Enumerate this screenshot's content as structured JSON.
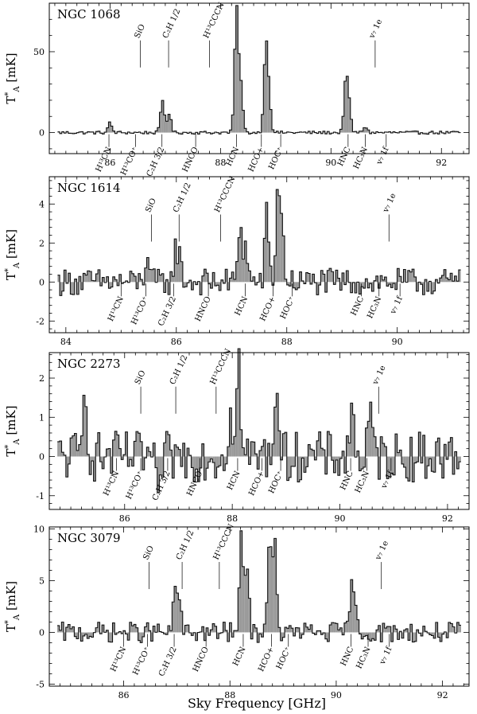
{
  "xlabel": "Sky Frequency [GHz]",
  "ylabel_main": "T",
  "ylabel_sup": "*",
  "ylabel_sub": "A",
  "ylabel_unit": "[mK]",
  "chart_data": [
    {
      "type": "line",
      "title": "NGC 1068",
      "xlim": [
        84.9,
        92.5
      ],
      "ylim": [
        -13,
        80
      ],
      "xticks": [
        86,
        88,
        90,
        92
      ],
      "yticks": [
        0,
        50
      ],
      "baseline_noise": 1.0,
      "peaks": [
        {
          "x": 85.98,
          "y": 6
        },
        {
          "x": 86.93,
          "y": 20
        },
        {
          "x": 87.05,
          "y": 12
        },
        {
          "x": 88.27,
          "y": 76
        },
        {
          "x": 88.35,
          "y": 28
        },
        {
          "x": 88.8,
          "y": 52
        },
        {
          "x": 88.86,
          "y": 20
        },
        {
          "x": 90.25,
          "y": 32
        },
        {
          "x": 90.31,
          "y": 15
        },
        {
          "x": 90.6,
          "y": 4
        }
      ],
      "upper_labels": [
        {
          "text": "SiO",
          "x": 86.55,
          "y": 55
        },
        {
          "text": "C₂H 1/2",
          "x": 87.06,
          "y": 55
        },
        {
          "text": "H¹³CCCN",
          "x": 87.8,
          "y": 55
        },
        {
          "text": "v₇ 1e",
          "x": 90.8,
          "y": 55
        }
      ],
      "lower_labels": [
        {
          "text": "H¹³CN",
          "x": 85.98
        },
        {
          "text": "H¹³CO⁺",
          "x": 86.46
        },
        {
          "text": "C₂H 3/2",
          "x": 86.94
        },
        {
          "text": "HNCO",
          "x": 87.55
        },
        {
          "text": "HCN",
          "x": 88.29
        },
        {
          "text": "HCO+",
          "x": 88.74
        },
        {
          "text": "HOC⁺",
          "x": 89.09
        },
        {
          "text": "HNC",
          "x": 90.31
        },
        {
          "text": "HC₃N",
          "x": 90.62
        },
        {
          "text": "v₇ 1f",
          "x": 91.0
        }
      ]
    },
    {
      "type": "line",
      "title": "NGC 1614",
      "xlim": [
        83.7,
        91.3
      ],
      "ylim": [
        -2.6,
        5.4
      ],
      "xticks": [
        84,
        86,
        88,
        90
      ],
      "yticks": [
        -2,
        0,
        2,
        4
      ],
      "baseline_noise": 0.7,
      "peaks": [
        {
          "x": 85.45,
          "y": 1.5
        },
        {
          "x": 85.97,
          "y": 1.7
        },
        {
          "x": 86.05,
          "y": 1.1
        },
        {
          "x": 87.14,
          "y": 3.1
        },
        {
          "x": 87.24,
          "y": 1.8
        },
        {
          "x": 87.62,
          "y": 3.5
        },
        {
          "x": 87.82,
          "y": 4.9
        },
        {
          "x": 87.9,
          "y": 2.6
        }
      ],
      "upper_labels": [
        {
          "text": "SiO",
          "x": 85.55,
          "y": 3.3
        },
        {
          "text": "C₂H 1/2",
          "x": 86.05,
          "y": 3.3
        },
        {
          "text": "H¹³CCCN",
          "x": 86.8,
          "y": 3.3
        },
        {
          "text": "v₇ 1e",
          "x": 89.85,
          "y": 3.3
        }
      ],
      "lower_labels": [
        {
          "text": "H¹³CN",
          "x": 85.0
        },
        {
          "text": "H¹³CO⁺",
          "x": 85.45
        },
        {
          "text": "C₂H 3/2",
          "x": 85.95
        },
        {
          "text": "HNCO",
          "x": 86.58
        },
        {
          "text": "HCN",
          "x": 87.25
        },
        {
          "text": "HCO+",
          "x": 87.75
        },
        {
          "text": "HOC⁺",
          "x": 88.1
        },
        {
          "text": "HNC",
          "x": 89.35
        },
        {
          "text": "HC₃N",
          "x": 89.67
        },
        {
          "text": "v₇ 1f",
          "x": 90.05
        }
      ]
    },
    {
      "type": "line",
      "title": "NGC 2273",
      "xlim": [
        84.6,
        92.4
      ],
      "ylim": [
        -1.35,
        2.65
      ],
      "xticks": [
        86,
        88,
        90,
        92
      ],
      "yticks": [
        -1,
        0,
        1,
        2
      ],
      "baseline_noise": 0.65,
      "peaks": [
        {
          "x": 85.25,
          "y": 1.95
        },
        {
          "x": 87.95,
          "y": 1.5
        },
        {
          "x": 88.1,
          "y": 2.55
        },
        {
          "x": 88.8,
          "y": 2.25
        },
        {
          "x": 90.2,
          "y": 1.4
        },
        {
          "x": 90.55,
          "y": 1.05
        },
        {
          "x": 86.6,
          "y": -1.5
        }
      ],
      "upper_labels": [
        {
          "text": "SiO",
          "x": 86.3,
          "y": 1.7
        },
        {
          "text": "C₂H 1/2",
          "x": 86.95,
          "y": 1.7
        },
        {
          "text": "H¹³CCCN",
          "x": 87.7,
          "y": 1.7
        },
        {
          "text": "v₇ 1e",
          "x": 90.72,
          "y": 1.7
        }
      ],
      "lower_labels": [
        {
          "text": "H¹³CN",
          "x": 85.85
        },
        {
          "text": "H¹³CO⁺",
          "x": 86.3
        },
        {
          "text": "C₂H 3/2",
          "x": 86.8
        },
        {
          "text": "HNCO",
          "x": 87.4
        },
        {
          "text": "HCN",
          "x": 88.1
        },
        {
          "text": "HCO+",
          "x": 88.55
        },
        {
          "text": "HOC⁺",
          "x": 88.9
        },
        {
          "text": "HNC",
          "x": 90.2
        },
        {
          "text": "HC₃N",
          "x": 90.5
        },
        {
          "text": "v₇ 1f",
          "x": 90.95
        }
      ]
    },
    {
      "type": "line",
      "title": "NGC 3079",
      "xlim": [
        84.6,
        92.5
      ],
      "ylim": [
        -5.2,
        10.2
      ],
      "xticks": [
        86,
        88,
        90,
        92
      ],
      "yticks": [
        -5,
        0,
        5,
        10
      ],
      "baseline_noise": 1.0,
      "peaks": [
        {
          "x": 86.95,
          "y": 3.8
        },
        {
          "x": 87.02,
          "y": 3.2
        },
        {
          "x": 88.2,
          "y": 9.3
        },
        {
          "x": 88.3,
          "y": 6.5
        },
        {
          "x": 88.72,
          "y": 9.3
        },
        {
          "x": 88.82,
          "y": 8.5
        },
        {
          "x": 90.26,
          "y": 4.3
        },
        {
          "x": 90.34,
          "y": 2.2
        }
      ],
      "upper_labels": [
        {
          "text": "SiO",
          "x": 86.48,
          "y": 6.5
        },
        {
          "text": "C₂H 1/2",
          "x": 87.1,
          "y": 6.5
        },
        {
          "text": "H¹³CCCN",
          "x": 87.8,
          "y": 6.5
        },
        {
          "text": "v₇ 1e",
          "x": 90.85,
          "y": 6.5
        }
      ],
      "lower_labels": [
        {
          "text": "H¹³CN",
          "x": 86.0
        },
        {
          "text": "H¹³CO⁺",
          "x": 86.45
        },
        {
          "text": "C₂H 3/2",
          "x": 86.95
        },
        {
          "text": "HNCO",
          "x": 87.55
        },
        {
          "text": "HCN",
          "x": 88.25
        },
        {
          "text": "HCO+",
          "x": 88.78
        },
        {
          "text": "HOC⁺",
          "x": 89.1
        },
        {
          "text": "HNC",
          "x": 90.28
        },
        {
          "text": "HC₃N",
          "x": 90.6
        },
        {
          "text": "v₇ 1f",
          "x": 91.0
        }
      ]
    }
  ]
}
